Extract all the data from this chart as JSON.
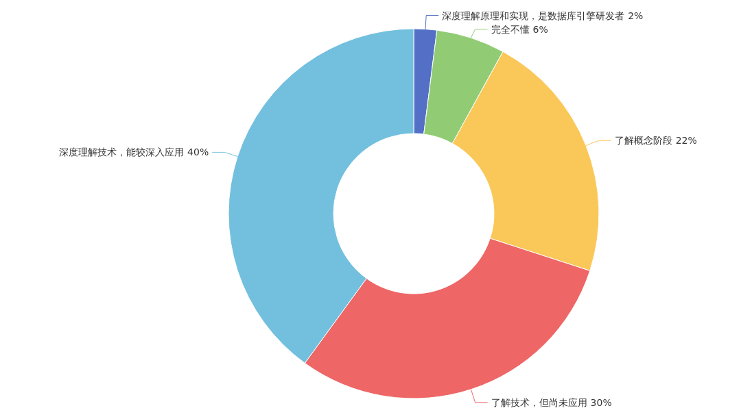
{
  "chart_data": {
    "type": "donut",
    "categories": [
      "深度理解原理和实现，是数据库引擎研发者",
      "完全不懂",
      "了解概念阶段",
      "了解技术，但尚未应用",
      "深度理解技术，能较深入应用"
    ],
    "values": [
      2,
      6,
      22,
      30,
      40
    ],
    "colors": [
      "#5470c6",
      "#91cc75",
      "#fac858",
      "#ee6666",
      "#73c0de"
    ],
    "value_labels": [
      "2%",
      "6%",
      "22%",
      "30%",
      "40%"
    ]
  }
}
